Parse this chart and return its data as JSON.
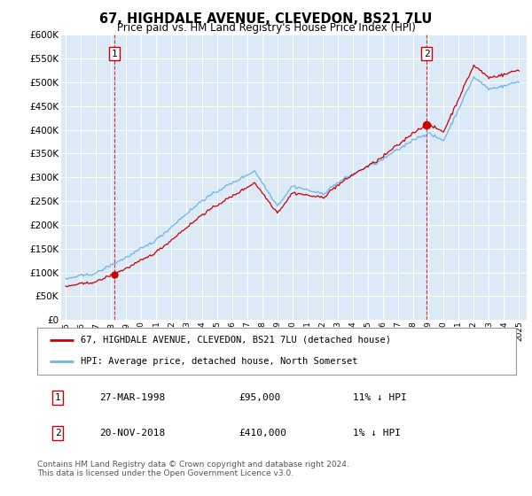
{
  "title": "67, HIGHDALE AVENUE, CLEVEDON, BS21 7LU",
  "subtitle": "Price paid vs. HM Land Registry's House Price Index (HPI)",
  "ylim": [
    0,
    600000
  ],
  "yticks": [
    0,
    50000,
    100000,
    150000,
    200000,
    250000,
    300000,
    350000,
    400000,
    450000,
    500000,
    550000,
    600000
  ],
  "ytick_labels": [
    "£0",
    "£50K",
    "£100K",
    "£150K",
    "£200K",
    "£250K",
    "£300K",
    "£350K",
    "£400K",
    "£450K",
    "£500K",
    "£550K",
    "£600K"
  ],
  "plot_bg": "#dce9f7",
  "hpi_color": "#6eb4e8",
  "price_color": "#cc0000",
  "marker1_year": 1998.22,
  "marker1_price": 95000,
  "marker2_year": 2018.89,
  "marker2_price": 410000,
  "legend_label1": "67, HIGHDALE AVENUE, CLEVEDON, BS21 7LU (detached house)",
  "legend_label2": "HPI: Average price, detached house, North Somerset",
  "table_row1": [
    "1",
    "27-MAR-1998",
    "£95,000",
    "11% ↓ HPI"
  ],
  "table_row2": [
    "2",
    "20-NOV-2018",
    "£410,000",
    "1% ↓ HPI"
  ],
  "footnote": "Contains HM Land Registry data © Crown copyright and database right 2024.\nThis data is licensed under the Open Government Licence v3.0.",
  "xstart": 1995,
  "xend": 2025
}
